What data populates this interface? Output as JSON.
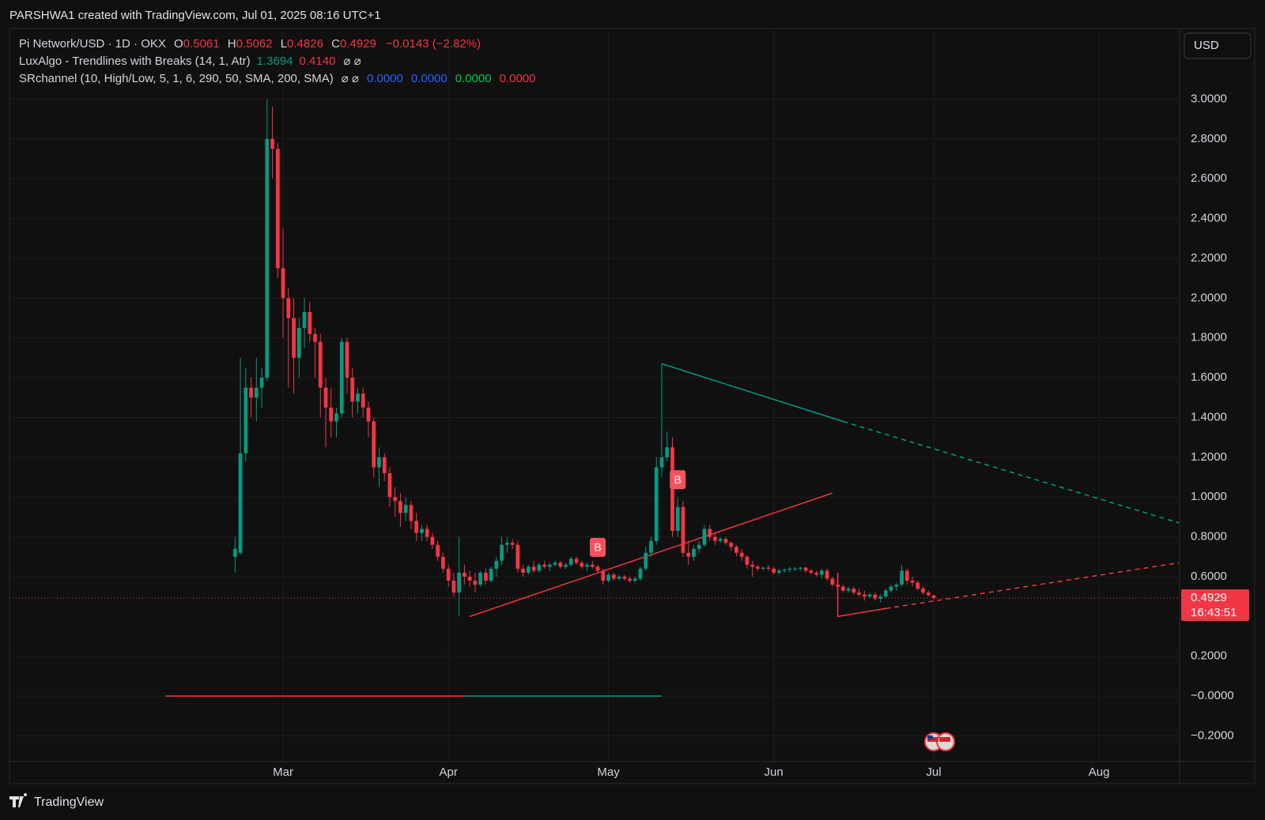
{
  "credit": "PARSHWA1 created with TradingView.com, Jul 01, 2025 08:16 UTC+1",
  "brand": "TradingView",
  "currency": "USD",
  "countdown": "16:43:51",
  "legend": {
    "symbol": "Pi Network/USD · 1D · OKX",
    "o": "O",
    "h": "H",
    "l": "L",
    "c": "C",
    "change": "−0.0143 (−2.82%)",
    "indicators": [
      {
        "name": "LuxAlgo - Trendlines with Breaks (14, 1, Atr)",
        "values": [
          {
            "text": "1.3694",
            "color": "#089981"
          },
          {
            "text": "0.4140",
            "color": "#f23645"
          }
        ],
        "icons": "⌀ ⌀"
      },
      {
        "name": "SRchannel (10, High/Low, 5, 1, 6, 290, 50, SMA, 200, SMA)",
        "icons": "⌀ ⌀",
        "values": [
          {
            "text": "0.0000",
            "color": "#2962ff"
          },
          {
            "text": "0.0000",
            "color": "#2962ff"
          },
          {
            "text": "0.0000",
            "color": "#00c853"
          },
          {
            "text": "0.0000",
            "color": "#f23645"
          }
        ]
      }
    ]
  },
  "chart_data": {
    "type": "candlestick",
    "up_color": "#089981",
    "down_color": "#f23645",
    "grid": true,
    "xlim": [
      -42.3,
      177.1
    ],
    "xticks": [
      {
        "value": 9,
        "label": "Mar"
      },
      {
        "value": 40,
        "label": "Apr"
      },
      {
        "value": 70,
        "label": "May"
      },
      {
        "value": 101,
        "label": "Jun"
      },
      {
        "value": 131,
        "label": "Jul"
      },
      {
        "value": 162,
        "label": "Aug"
      }
    ],
    "ylim": [
      -0.329,
      3.355
    ],
    "yticks": [
      {
        "value": -0.2,
        "label": "−0.2000"
      },
      {
        "value": 0,
        "label": "−0.0000"
      },
      {
        "value": 0.2,
        "label": "0.2000"
      },
      {
        "value": 0.6,
        "label": "0.6000"
      },
      {
        "value": 0.8,
        "label": "0.8000"
      },
      {
        "value": 1.0,
        "label": "1.0000"
      },
      {
        "value": 1.2,
        "label": "1.2000"
      },
      {
        "value": 1.4,
        "label": "1.4000"
      },
      {
        "value": 1.6,
        "label": "1.6000"
      },
      {
        "value": 1.8,
        "label": "1.8000"
      },
      {
        "value": 2.0,
        "label": "2.0000"
      },
      {
        "value": 2.2,
        "label": "2.2000"
      },
      {
        "value": 2.4,
        "label": "2.4000"
      },
      {
        "value": 2.6,
        "label": "2.6000"
      },
      {
        "value": 2.8,
        "label": "2.8000"
      },
      {
        "value": 3.0,
        "label": "3.0000"
      }
    ],
    "open": [
      0.7,
      0.72,
      1.22,
      1.55,
      1.5,
      1.55,
      1.6,
      2.8,
      2.75,
      2.15,
      2.0,
      1.9,
      1.7,
      1.85,
      1.93,
      1.82,
      1.78,
      1.55,
      1.45,
      1.38,
      1.42,
      1.78,
      1.6,
      1.48,
      1.52,
      1.45,
      1.38,
      1.15,
      1.2,
      1.12,
      1.0,
      0.98,
      0.92,
      0.96,
      0.88,
      0.82,
      0.84,
      0.8,
      0.76,
      0.7,
      0.64,
      0.58,
      0.52,
      0.62,
      0.6,
      0.58,
      0.56,
      0.62,
      0.58,
      0.64,
      0.68,
      0.76,
      0.77,
      0.76,
      0.64,
      0.62,
      0.65,
      0.63,
      0.66,
      0.65,
      0.66,
      0.67,
      0.65,
      0.66,
      0.69,
      0.67,
      0.65,
      0.66,
      0.65,
      0.63,
      0.58,
      0.61,
      0.59,
      0.6,
      0.59,
      0.58,
      0.59,
      0.64,
      0.72,
      0.78,
      1.15,
      1.2,
      1.25,
      0.83,
      0.95,
      0.72,
      0.7,
      0.74,
      0.76,
      0.84,
      0.8,
      0.78,
      0.79,
      0.77,
      0.75,
      0.72,
      0.7,
      0.66,
      0.65,
      0.64,
      0.645,
      0.64,
      0.62,
      0.63,
      0.635,
      0.64,
      0.64,
      0.645,
      0.63,
      0.62,
      0.61,
      0.63,
      0.59,
      0.56,
      0.55,
      0.53,
      0.54,
      0.52,
      0.51,
      0.5,
      0.51,
      0.49,
      0.5,
      0.53,
      0.55,
      0.56,
      0.63,
      0.58,
      0.57,
      0.54,
      0.52,
      0.5061
    ],
    "high": [
      0.8,
      1.7,
      1.65,
      1.6,
      1.7,
      1.65,
      3.0,
      2.96,
      2.78,
      2.35,
      2.05,
      2.0,
      1.9,
      2.0,
      1.98,
      1.85,
      1.82,
      1.6,
      1.55,
      1.45,
      1.8,
      1.8,
      1.65,
      1.55,
      1.55,
      1.48,
      1.4,
      1.25,
      1.22,
      1.15,
      1.05,
      1.02,
      1.0,
      0.98,
      0.92,
      0.86,
      0.86,
      0.82,
      0.78,
      0.72,
      0.66,
      0.62,
      0.8,
      0.66,
      0.63,
      0.62,
      0.63,
      0.64,
      0.65,
      0.7,
      0.8,
      0.8,
      0.79,
      0.78,
      0.66,
      0.66,
      0.68,
      0.67,
      0.68,
      0.67,
      0.68,
      0.68,
      0.67,
      0.7,
      0.7,
      0.68,
      0.67,
      0.68,
      0.66,
      0.64,
      0.62,
      0.62,
      0.61,
      0.61,
      0.6,
      0.6,
      0.65,
      0.75,
      0.8,
      1.2,
      1.67,
      1.33,
      1.3,
      1.0,
      0.98,
      0.78,
      0.76,
      0.78,
      0.86,
      0.86,
      0.82,
      0.8,
      0.8,
      0.78,
      0.76,
      0.74,
      0.71,
      0.68,
      0.66,
      0.65,
      0.66,
      0.65,
      0.64,
      0.64,
      0.65,
      0.65,
      0.65,
      0.65,
      0.64,
      0.63,
      0.64,
      0.64,
      0.6,
      0.58,
      0.56,
      0.55,
      0.55,
      0.54,
      0.53,
      0.52,
      0.52,
      0.51,
      0.54,
      0.56,
      0.57,
      0.66,
      0.64,
      0.6,
      0.58,
      0.55,
      0.53,
      0.5062
    ],
    "low": [
      0.62,
      0.71,
      1.18,
      1.4,
      1.38,
      1.45,
      1.58,
      2.6,
      2.1,
      1.8,
      1.55,
      1.52,
      1.6,
      1.75,
      1.78,
      1.6,
      1.4,
      1.25,
      1.3,
      1.3,
      1.4,
      1.52,
      1.4,
      1.42,
      1.4,
      1.3,
      1.1,
      1.05,
      1.08,
      0.95,
      0.9,
      0.85,
      0.88,
      0.84,
      0.78,
      0.78,
      0.78,
      0.74,
      0.68,
      0.62,
      0.55,
      0.5,
      0.4,
      0.56,
      0.55,
      0.52,
      0.55,
      0.56,
      0.57,
      0.6,
      0.66,
      0.72,
      0.74,
      0.62,
      0.6,
      0.61,
      0.62,
      0.62,
      0.64,
      0.63,
      0.65,
      0.64,
      0.64,
      0.65,
      0.66,
      0.64,
      0.63,
      0.64,
      0.62,
      0.56,
      0.57,
      0.58,
      0.58,
      0.58,
      0.57,
      0.57,
      0.58,
      0.63,
      0.7,
      0.76,
      1.1,
      1.18,
      0.8,
      0.8,
      0.7,
      0.66,
      0.68,
      0.72,
      0.75,
      0.78,
      0.76,
      0.77,
      0.76,
      0.73,
      0.7,
      0.68,
      0.64,
      0.6,
      0.63,
      0.63,
      0.63,
      0.61,
      0.61,
      0.62,
      0.62,
      0.63,
      0.63,
      0.62,
      0.61,
      0.6,
      0.59,
      0.58,
      0.55,
      0.54,
      0.52,
      0.52,
      0.51,
      0.5,
      0.48,
      0.49,
      0.48,
      0.47,
      0.49,
      0.52,
      0.53,
      0.55,
      0.56,
      0.55,
      0.53,
      0.51,
      0.5,
      0.4826
    ],
    "close": [
      0.74,
      1.22,
      1.55,
      1.5,
      1.55,
      1.6,
      2.8,
      2.75,
      2.15,
      2.0,
      1.9,
      1.7,
      1.85,
      1.93,
      1.82,
      1.78,
      1.55,
      1.45,
      1.38,
      1.42,
      1.78,
      1.6,
      1.48,
      1.52,
      1.45,
      1.38,
      1.15,
      1.2,
      1.12,
      1.0,
      0.98,
      0.92,
      0.96,
      0.88,
      0.82,
      0.84,
      0.8,
      0.76,
      0.7,
      0.64,
      0.58,
      0.52,
      0.62,
      0.6,
      0.58,
      0.56,
      0.62,
      0.58,
      0.64,
      0.68,
      0.76,
      0.77,
      0.76,
      0.64,
      0.62,
      0.65,
      0.63,
      0.66,
      0.65,
      0.66,
      0.67,
      0.65,
      0.66,
      0.69,
      0.67,
      0.65,
      0.66,
      0.65,
      0.63,
      0.58,
      0.61,
      0.59,
      0.6,
      0.59,
      0.58,
      0.59,
      0.64,
      0.72,
      0.78,
      1.15,
      1.2,
      1.25,
      0.83,
      0.95,
      0.72,
      0.7,
      0.74,
      0.76,
      0.84,
      0.8,
      0.78,
      0.79,
      0.77,
      0.75,
      0.72,
      0.7,
      0.66,
      0.65,
      0.64,
      0.645,
      0.64,
      0.62,
      0.63,
      0.635,
      0.64,
      0.64,
      0.645,
      0.63,
      0.62,
      0.61,
      0.63,
      0.59,
      0.56,
      0.55,
      0.53,
      0.54,
      0.52,
      0.51,
      0.5,
      0.51,
      0.49,
      0.5,
      0.53,
      0.55,
      0.56,
      0.63,
      0.58,
      0.57,
      0.54,
      0.52,
      0.5072,
      0.4929
    ],
    "signals": [
      {
        "index": 68,
        "label": "B"
      },
      {
        "index": 83,
        "label": "B"
      }
    ],
    "trendlines": [
      {
        "color": "#089981",
        "dashed": false,
        "x": [
          80,
          114
        ],
        "y": [
          1.67,
          1.38
        ]
      },
      {
        "color": "#089981",
        "dashed": true,
        "x": [
          114,
          177
        ],
        "y": [
          1.38,
          0.87
        ]
      },
      {
        "color": "#f23645",
        "dashed": false,
        "x": [
          44,
          112
        ],
        "y": [
          0.4,
          1.02
        ]
      },
      {
        "color": "#f23645",
        "dashed": false,
        "x": [
          113,
          113,
          122
        ],
        "y": [
          0.62,
          0.4,
          0.44
        ]
      },
      {
        "color": "#f23645",
        "dashed": true,
        "x": [
          122,
          177
        ],
        "y": [
          0.44,
          0.67
        ]
      },
      {
        "color": "#f23645",
        "dashed": false,
        "x": [
          -13,
          43
        ],
        "y": [
          0,
          0
        ]
      },
      {
        "color": "#089981",
        "dashed": false,
        "x": [
          43,
          80
        ],
        "y": [
          0,
          0
        ]
      }
    ]
  }
}
